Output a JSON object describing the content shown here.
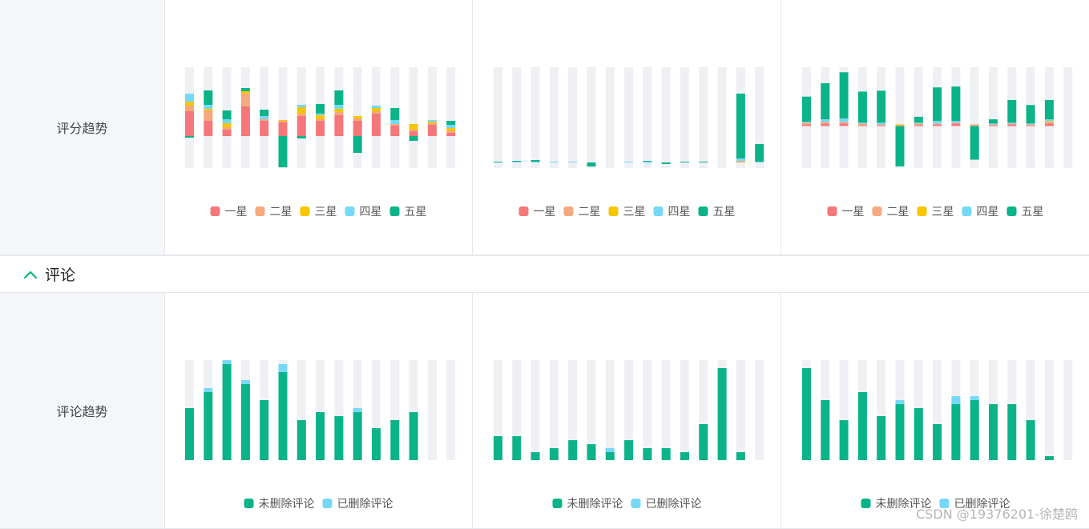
{
  "rows": {
    "ratings_label": "评分趋势",
    "comments_label": "评论趋势"
  },
  "section": {
    "title": "评论"
  },
  "watermark": "CSDN @19376201-徐楚鸥",
  "colors": {
    "one_star": "#f4777a",
    "two_star": "#f6a97c",
    "three_star": "#f7c600",
    "four_star": "#76d8f7",
    "five_star": "#0ab388",
    "undeleted": "#0ab388",
    "deleted": "#76d8f7",
    "bar_background": "#eef0f4"
  },
  "chart_data": [
    {
      "type": "bar",
      "stacked": true,
      "diverging": true,
      "categories": [
        "",
        "",
        "",
        "",
        "",
        "",
        "",
        "",
        "",
        "",
        "",
        "",
        "",
        "",
        ""
      ],
      "ylim": [
        -40,
        86
      ],
      "series": [
        {
          "name": "一星",
          "values": [
            31,
            19,
            8,
            37,
            19,
            17,
            25,
            19,
            26,
            19,
            28,
            13,
            6,
            14,
            4
          ]
        },
        {
          "name": "二星",
          "values": [
            7,
            13,
            3,
            16,
            2,
            2,
            3,
            2,
            4,
            3,
            3,
            2,
            2,
            2,
            3
          ]
        },
        {
          "name": "三星",
          "values": [
            5,
            2,
            5,
            3,
            0,
            1,
            8,
            5,
            4,
            3,
            4,
            0,
            7,
            2,
            3
          ]
        },
        {
          "name": "四星",
          "values": [
            10,
            5,
            5,
            0,
            4,
            0,
            3,
            2,
            5,
            0,
            3,
            5,
            0,
            2,
            4
          ]
        },
        {
          "name": "五星",
          "values": [
            -2,
            18,
            11,
            4,
            8,
            -39,
            -3,
            12,
            18,
            -21,
            0,
            15,
            -6,
            0,
            5
          ]
        }
      ]
    },
    {
      "type": "bar",
      "stacked": true,
      "diverging": true,
      "categories": [
        "",
        "",
        "",
        "",
        "",
        "",
        "",
        "",
        "",
        "",
        "",
        "",
        "",
        "",
        ""
      ],
      "ylim": [
        -7,
        119
      ],
      "series": [
        {
          "name": "一星",
          "values": [
            0,
            0,
            0,
            0,
            0,
            0,
            0,
            0,
            0,
            0,
            0,
            0,
            0,
            0,
            0
          ]
        },
        {
          "name": "二星",
          "values": [
            0,
            0,
            0,
            0,
            0,
            0,
            0,
            0,
            0,
            0,
            0,
            0,
            0,
            2,
            0
          ]
        },
        {
          "name": "三星",
          "values": [
            0,
            0,
            0,
            0,
            0,
            0,
            0,
            0,
            0,
            0,
            0,
            0,
            0,
            0,
            0
          ]
        },
        {
          "name": "四星",
          "values": [
            0,
            1,
            1,
            1,
            1,
            0,
            0,
            1,
            1,
            0,
            0,
            0,
            0,
            3,
            1
          ]
        },
        {
          "name": "五星",
          "values": [
            1,
            1,
            2,
            0,
            0,
            -5,
            0,
            0,
            1,
            -2,
            1,
            1,
            0,
            81,
            22
          ]
        }
      ]
    },
    {
      "type": "bar",
      "stacked": true,
      "diverging": true,
      "categories": [
        "",
        "",
        "",
        "",
        "",
        "",
        "",
        "",
        "",
        "",
        "",
        "",
        "",
        "",
        ""
      ],
      "ylim": [
        -50,
        70
      ],
      "series": [
        {
          "name": "一星",
          "values": [
            2,
            3,
            3,
            1,
            1,
            0,
            1,
            2,
            3,
            0,
            1,
            2,
            1,
            3,
            0
          ]
        },
        {
          "name": "二星",
          "values": [
            2,
            2,
            2,
            2,
            1,
            1,
            2,
            1,
            1,
            2,
            1,
            1,
            1,
            2,
            0
          ]
        },
        {
          "name": "三星",
          "values": [
            0,
            0,
            0,
            0,
            0,
            1,
            0,
            0,
            0,
            0,
            0,
            0,
            0,
            1,
            0
          ]
        },
        {
          "name": "四星",
          "values": [
            1,
            3,
            4,
            1,
            2,
            0,
            1,
            3,
            2,
            0,
            1,
            1,
            1,
            2,
            0
          ]
        },
        {
          "name": "五星",
          "values": [
            30,
            43,
            55,
            37,
            38,
            -48,
            7,
            40,
            41,
            -40,
            5,
            27,
            22,
            23,
            0
          ]
        }
      ]
    },
    {
      "type": "bar",
      "stacked": true,
      "categories": [
        "",
        "",
        "",
        "",
        "",
        "",
        "",
        "",
        "",
        "",
        "",
        "",
        "",
        "",
        ""
      ],
      "ylim": [
        0,
        25
      ],
      "series": [
        {
          "name": "未删除评论",
          "values": [
            13,
            17,
            24,
            19,
            15,
            22,
            10,
            12,
            11,
            12,
            8,
            10,
            12,
            0,
            0
          ]
        },
        {
          "name": "已删除评论",
          "values": [
            0,
            1,
            1,
            1,
            0,
            2,
            0,
            0,
            0,
            1,
            0,
            0,
            0,
            0,
            0
          ]
        }
      ]
    },
    {
      "type": "bar",
      "stacked": true,
      "categories": [
        "",
        "",
        "",
        "",
        "",
        "",
        "",
        "",
        "",
        "",
        "",
        "",
        "",
        "",
        ""
      ],
      "ylim": [
        0,
        25
      ],
      "series": [
        {
          "name": "未删除评论",
          "values": [
            6,
            6,
            2,
            3,
            5,
            4,
            2,
            5,
            3,
            3,
            2,
            9,
            23,
            2,
            0
          ]
        },
        {
          "name": "已删除评论",
          "values": [
            0,
            0,
            0,
            0,
            0,
            0,
            1,
            0,
            0,
            0,
            0,
            0,
            0,
            0,
            0
          ]
        }
      ]
    },
    {
      "type": "bar",
      "stacked": true,
      "categories": [
        "",
        "",
        "",
        "",
        "",
        "",
        "",
        "",
        "",
        "",
        "",
        "",
        "",
        "",
        ""
      ],
      "ylim": [
        0,
        25
      ],
      "series": [
        {
          "name": "未删除评论",
          "values": [
            23,
            15,
            10,
            17,
            11,
            14,
            13,
            9,
            14,
            15,
            14,
            14,
            10,
            1,
            0
          ]
        },
        {
          "name": "已删除评论",
          "values": [
            0,
            0,
            0,
            0,
            0,
            1,
            0,
            0,
            2,
            1,
            0,
            0,
            0,
            0,
            0
          ]
        }
      ]
    }
  ]
}
